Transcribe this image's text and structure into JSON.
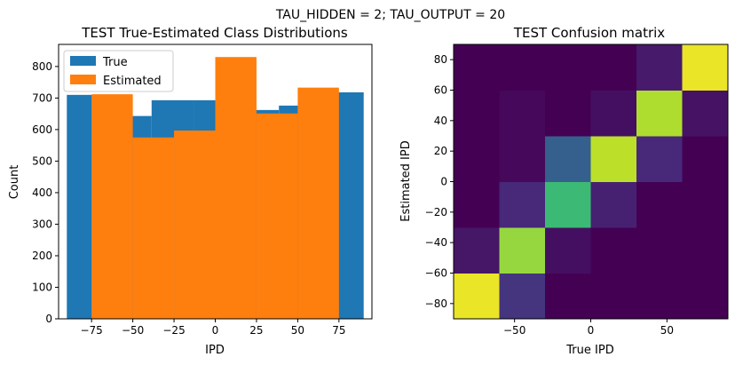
{
  "suptitle": "TAU_HIDDEN = 2; TAU_OUTPUT = 20",
  "chart_data": [
    {
      "type": "bar",
      "title": "TEST True-Estimated Class Distributions",
      "xlabel": "IPD",
      "ylabel": "Count",
      "xlim": [
        -95,
        95
      ],
      "ylim": [
        0,
        870
      ],
      "xticks": [
        -75,
        -50,
        -25,
        0,
        25,
        50,
        75
      ],
      "xtick_labels": [
        "−75",
        "−50",
        "−25",
        "0",
        "25",
        "50",
        "75"
      ],
      "yticks": [
        0,
        100,
        200,
        300,
        400,
        500,
        600,
        700,
        800
      ],
      "ytick_labels": [
        "0",
        "100",
        "200",
        "300",
        "400",
        "500",
        "600",
        "700",
        "800"
      ],
      "legend_position": "upper-left",
      "series": [
        {
          "name": "True",
          "color": "#1f77b4",
          "bins": [
            [
              -90,
              -64.3
            ],
            [
              -64.3,
              -38.6
            ],
            [
              -38.6,
              -12.9
            ],
            [
              -12.9,
              12.9
            ],
            [
              12.9,
              38.6
            ],
            [
              38.6,
              64.3
            ],
            [
              64.3,
              90
            ]
          ],
          "values": [
            710,
            643,
            693,
            693,
            662,
            676,
            718
          ]
        },
        {
          "name": "Estimated",
          "color": "#ff7f0e",
          "bins": [
            [
              -75,
              -50
            ],
            [
              -50,
              -25
            ],
            [
              -25,
              0
            ],
            [
              0,
              25
            ],
            [
              25,
              50
            ],
            [
              50,
              75
            ]
          ],
          "values": [
            712,
            575,
            597,
            830,
            651,
            733
          ]
        }
      ]
    },
    {
      "type": "heatmap",
      "title": "TEST Confusion matrix",
      "xlabel": "True IPD",
      "ylabel": "Estimated IPD",
      "xlim": [
        -90,
        90
      ],
      "ylim": [
        -90,
        90
      ],
      "xticks": [
        -50,
        0,
        50
      ],
      "xtick_labels": [
        "−50",
        "0",
        "50"
      ],
      "yticks": [
        -80,
        -60,
        -40,
        -20,
        0,
        20,
        40,
        60,
        80
      ],
      "ytick_labels": [
        "−80",
        "−60",
        "−40",
        "−20",
        "0",
        "20",
        "40",
        "60",
        "80"
      ],
      "colormap": [
        "#440154",
        "#482878",
        "#3e4989",
        "#31688e",
        "#26828e",
        "#1f9e89",
        "#35b779",
        "#6ece58",
        "#b5de2b",
        "#fde725"
      ],
      "rows_bottom_to_top": [
        [
          0.97,
          0.15,
          0.0,
          0.0,
          0.0,
          0.0
        ],
        [
          0.06,
          0.84,
          0.04,
          0.0,
          0.0,
          0.0
        ],
        [
          0.0,
          0.11,
          0.68,
          0.09,
          0.0,
          0.0
        ],
        [
          0.0,
          0.02,
          0.3,
          0.9,
          0.11,
          0.0
        ],
        [
          0.0,
          0.02,
          0.0,
          0.04,
          0.88,
          0.05
        ],
        [
          0.0,
          0.0,
          0.0,
          0.0,
          0.07,
          0.97
        ]
      ]
    }
  ]
}
